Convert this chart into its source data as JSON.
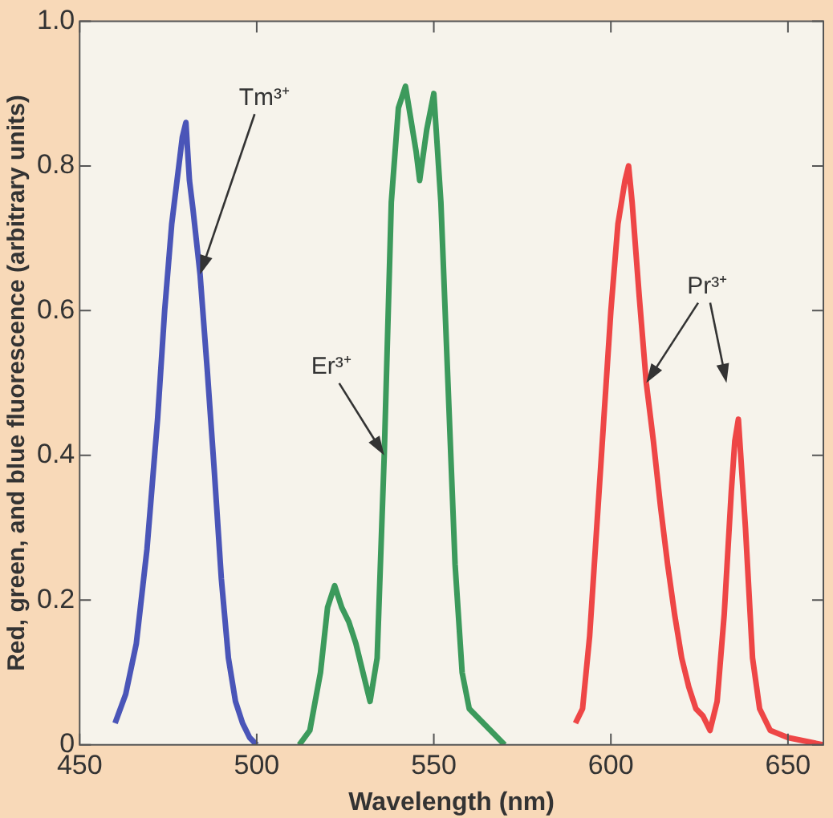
{
  "chart_data": {
    "type": "line",
    "xlabel": "Wavelength (nm)",
    "ylabel": "Red, green, and blue fluorescence (arbitrary units)",
    "xlim": [
      450,
      660
    ],
    "ylim": [
      0,
      1
    ],
    "xticks": [
      450,
      500,
      550,
      600,
      650
    ],
    "yticks": [
      0,
      0.2,
      0.4,
      0.6,
      0.8,
      {
        "value": 1,
        "label": "1.0"
      }
    ],
    "grid": false,
    "legend": false,
    "marker": "none",
    "line_style": "solid",
    "series": [
      {
        "color": "#4a55b8",
        "x": [
          460,
          463,
          466,
          469,
          472,
          474,
          476,
          478,
          479,
          480,
          481,
          482,
          484,
          486,
          488,
          490,
          492,
          494,
          496,
          498,
          500
        ],
        "values": [
          0.03,
          0.07,
          0.14,
          0.27,
          0.45,
          0.6,
          0.72,
          0.8,
          0.84,
          0.86,
          0.78,
          0.74,
          0.65,
          0.52,
          0.38,
          0.23,
          0.12,
          0.06,
          0.03,
          0.01,
          0
        ]
      },
      {
        "color": "#3c9a5c",
        "x": [
          512,
          515,
          518,
          520,
          522,
          524,
          526,
          528,
          530,
          532,
          534,
          536,
          538,
          540,
          542,
          543,
          545,
          546,
          548,
          550,
          552,
          554,
          556,
          558,
          560,
          564,
          570
        ],
        "values": [
          0,
          0.02,
          0.1,
          0.19,
          0.22,
          0.19,
          0.17,
          0.14,
          0.1,
          0.06,
          0.12,
          0.4,
          0.75,
          0.88,
          0.91,
          0.88,
          0.82,
          0.78,
          0.85,
          0.9,
          0.75,
          0.5,
          0.25,
          0.1,
          0.05,
          0.03,
          0
        ]
      },
      {
        "color": "#ee4646",
        "x": [
          590,
          592,
          594,
          596,
          598,
          600,
          602,
          604,
          605,
          606,
          608,
          610,
          612,
          614,
          616,
          618,
          620,
          622,
          624,
          626,
          628,
          630,
          632,
          634,
          635,
          636,
          638,
          640,
          642,
          645,
          650,
          660
        ],
        "values": [
          0.03,
          0.05,
          0.15,
          0.3,
          0.45,
          0.6,
          0.72,
          0.78,
          0.8,
          0.75,
          0.62,
          0.5,
          0.42,
          0.33,
          0.25,
          0.18,
          0.12,
          0.08,
          0.05,
          0.04,
          0.02,
          0.06,
          0.18,
          0.35,
          0.42,
          0.45,
          0.3,
          0.12,
          0.05,
          0.02,
          0.01,
          0
        ]
      }
    ],
    "annotations": [
      {
        "text": "Tm³⁺",
        "x": 484,
        "y": 0.65
      },
      {
        "text": "Er³⁺",
        "x": 536,
        "y": 0.4
      },
      {
        "text": "Pr³⁺",
        "x": 610,
        "y": 0.5
      }
    ]
  }
}
